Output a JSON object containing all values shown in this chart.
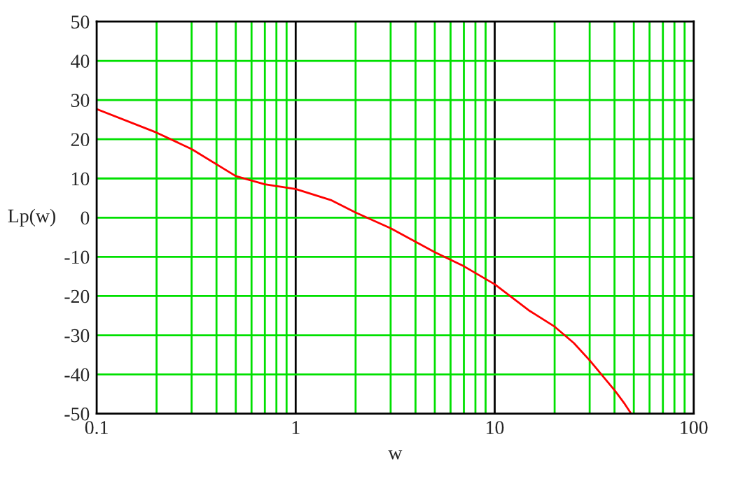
{
  "chart_data": {
    "type": "line",
    "xlabel": "w",
    "ylabel": "Lp(w)",
    "log": "x",
    "grid": true,
    "legend": false,
    "marker": "none",
    "line_style": "solid",
    "xlim": [
      0.1,
      100
    ],
    "xticks": [
      0.1,
      1,
      10,
      100
    ],
    "ylim": [
      -50,
      50
    ],
    "yticks": [
      -50,
      -40,
      -30,
      -20,
      -10,
      0,
      10,
      20,
      30,
      40,
      50
    ],
    "series": [
      {
        "color": "#ff0000",
        "x": [
          0.1,
          0.2,
          0.3,
          0.5,
          0.7,
          1,
          1.5,
          2,
          3,
          5,
          7,
          10,
          15,
          20,
          25,
          30,
          40,
          45,
          48.5
        ],
        "values": [
          27.7,
          21.7,
          17.5,
          10.6,
          8.5,
          7.3,
          4.5,
          1.3,
          -2.7,
          -8.8,
          -12.4,
          -17,
          -23.8,
          -27.8,
          -32,
          -36.4,
          -44,
          -47.5,
          -50
        ]
      }
    ]
  }
}
